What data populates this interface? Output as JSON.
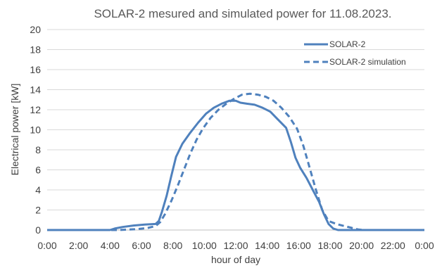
{
  "chart_data": {
    "type": "line",
    "title": "SOLAR-2 mesured and simulated power for 11.08.2023.",
    "xlabel": "hour of day",
    "ylabel": "Electrical power [kW]",
    "xlim": [
      0,
      24
    ],
    "ylim": [
      0,
      20
    ],
    "x_ticks": [
      "0:00",
      "2:00",
      "4:00",
      "6:00",
      "8:00",
      "10:00",
      "12:00",
      "14:00",
      "16:00",
      "18:00",
      "20:00",
      "22:00",
      "0:00"
    ],
    "y_ticks": [
      "0",
      "2",
      "4",
      "6",
      "8",
      "10",
      "12",
      "14",
      "16",
      "18",
      "20"
    ],
    "grid": "horizontal",
    "legend_position": "top-right",
    "line_color": "#4f81bd",
    "series": [
      {
        "name": "SOLAR-2",
        "style": "solid",
        "points": [
          [
            0,
            0
          ],
          [
            4.0,
            0
          ],
          [
            4.3,
            0.15
          ],
          [
            4.8,
            0.3
          ],
          [
            5.5,
            0.45
          ],
          [
            6.2,
            0.55
          ],
          [
            6.9,
            0.6
          ],
          [
            7.1,
            0.9
          ],
          [
            7.3,
            1.8
          ],
          [
            7.6,
            3.4
          ],
          [
            7.9,
            5.4
          ],
          [
            8.2,
            7.3
          ],
          [
            8.6,
            8.6
          ],
          [
            9.1,
            9.7
          ],
          [
            9.6,
            10.7
          ],
          [
            10.1,
            11.6
          ],
          [
            10.6,
            12.2
          ],
          [
            11.1,
            12.6
          ],
          [
            11.6,
            12.9
          ],
          [
            12.0,
            12.9
          ],
          [
            12.3,
            12.7
          ],
          [
            12.7,
            12.6
          ],
          [
            13.2,
            12.5
          ],
          [
            13.7,
            12.2
          ],
          [
            14.2,
            11.8
          ],
          [
            14.7,
            11.0
          ],
          [
            15.2,
            10.2
          ],
          [
            15.5,
            8.8
          ],
          [
            15.8,
            7.2
          ],
          [
            16.1,
            6.2
          ],
          [
            16.5,
            5.2
          ],
          [
            16.9,
            4.0
          ],
          [
            17.3,
            2.8
          ],
          [
            17.6,
            1.6
          ],
          [
            17.9,
            0.6
          ],
          [
            18.2,
            0.15
          ],
          [
            18.5,
            0
          ],
          [
            24,
            0
          ]
        ]
      },
      {
        "name": "SOLAR-2 simulation",
        "style": "dashed",
        "points": [
          [
            0,
            0
          ],
          [
            4.6,
            0
          ],
          [
            5.2,
            0.05
          ],
          [
            5.8,
            0.1
          ],
          [
            6.4,
            0.2
          ],
          [
            6.9,
            0.4
          ],
          [
            7.2,
            0.8
          ],
          [
            7.5,
            1.6
          ],
          [
            7.9,
            2.9
          ],
          [
            8.3,
            4.4
          ],
          [
            8.7,
            6.0
          ],
          [
            9.1,
            7.6
          ],
          [
            9.5,
            9.0
          ],
          [
            9.9,
            10.1
          ],
          [
            10.4,
            11.2
          ],
          [
            10.9,
            12.0
          ],
          [
            11.4,
            12.6
          ],
          [
            11.9,
            13.1
          ],
          [
            12.4,
            13.5
          ],
          [
            12.9,
            13.6
          ],
          [
            13.4,
            13.5
          ],
          [
            13.9,
            13.3
          ],
          [
            14.4,
            12.9
          ],
          [
            14.9,
            12.2
          ],
          [
            15.4,
            11.3
          ],
          [
            15.9,
            10.1
          ],
          [
            16.3,
            8.4
          ],
          [
            16.7,
            6.2
          ],
          [
            17.1,
            4.0
          ],
          [
            17.5,
            2.0
          ],
          [
            17.9,
            0.9
          ],
          [
            18.4,
            0.6
          ],
          [
            18.9,
            0.4
          ],
          [
            19.4,
            0.2
          ],
          [
            19.8,
            0.05
          ],
          [
            20.1,
            0
          ],
          [
            24,
            0
          ]
        ]
      }
    ]
  }
}
